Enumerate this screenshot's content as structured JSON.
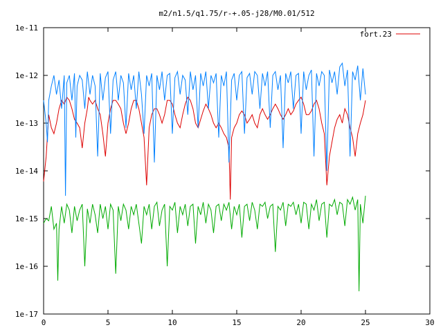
{
  "chart_data": {
    "type": "line",
    "title": "m2/n1.5/q1.75/r-+.05-j28/M0.01/512",
    "xlabel": "",
    "ylabel": "",
    "xlim": [
      0,
      30
    ],
    "ylim": [
      1e-17,
      1e-11
    ],
    "yscale": "log",
    "x_ticks": [
      0,
      5,
      10,
      15,
      20,
      25,
      30
    ],
    "x_tick_labels": [
      "0",
      "5",
      "10",
      "15",
      "20",
      "25",
      "30"
    ],
    "y_ticks": [
      1e-17,
      1e-16,
      1e-15,
      1e-14,
      1e-13,
      1e-12,
      1e-11
    ],
    "y_tick_labels": [
      "1e-17",
      "1e-16",
      "1e-15",
      "1e-14",
      "1e-13",
      "1e-12",
      "1e-11"
    ],
    "grid": false,
    "legend_position": "top-right",
    "legend": [
      "fort.23"
    ],
    "series": [
      {
        "name": "fort.23",
        "color": "#dd0000",
        "x": [
          0.0,
          0.2,
          0.4,
          0.6,
          0.8,
          1.0,
          1.2,
          1.4,
          1.6,
          1.8,
          2.0,
          2.2,
          2.4,
          2.6,
          2.8,
          3.0,
          3.2,
          3.4,
          3.5,
          3.6,
          3.8,
          4.0,
          4.2,
          4.4,
          4.6,
          4.8,
          5.0,
          5.2,
          5.4,
          5.6,
          5.8,
          6.0,
          6.2,
          6.4,
          6.6,
          6.8,
          7.0,
          7.2,
          7.4,
          7.6,
          7.8,
          8.0,
          8.2,
          8.4,
          8.6,
          8.8,
          9.0,
          9.2,
          9.4,
          9.6,
          9.8,
          10.0,
          10.2,
          10.4,
          10.6,
          10.8,
          11.0,
          11.2,
          11.4,
          11.6,
          11.8,
          12.0,
          12.2,
          12.4,
          12.6,
          12.8,
          13.0,
          13.2,
          13.4,
          13.6,
          13.8,
          14.0,
          14.2,
          14.4,
          14.5,
          14.6,
          14.8,
          15.0,
          15.2,
          15.4,
          15.6,
          15.8,
          16.0,
          16.2,
          16.4,
          16.6,
          16.8,
          17.0,
          17.2,
          17.4,
          17.6,
          17.8,
          18.0,
          18.2,
          18.4,
          18.6,
          18.8,
          19.0,
          19.2,
          19.4,
          19.6,
          19.8,
          20.0,
          20.2,
          20.4,
          20.6,
          20.8,
          21.0,
          21.2,
          21.4,
          21.6,
          21.8,
          22.0,
          22.2,
          22.4,
          22.6,
          22.8,
          23.0,
          23.2,
          23.4,
          23.6,
          23.8,
          24.0,
          24.2,
          24.4,
          24.6,
          24.8,
          25.0
        ],
        "y": [
          6e-15,
          2e-14,
          1.5e-13,
          8e-14,
          6e-14,
          1e-13,
          2e-13,
          3e-13,
          2.5e-13,
          3.5e-13,
          3e-13,
          2e-13,
          1.2e-13,
          1e-13,
          8e-14,
          3e-14,
          1e-13,
          2e-13,
          3.5e-13,
          3e-13,
          2.5e-13,
          3e-13,
          2e-13,
          1.5e-13,
          6e-14,
          2e-14,
          1e-13,
          2e-13,
          3e-13,
          3e-13,
          2.5e-13,
          2e-13,
          1e-13,
          6e-14,
          1e-13,
          2e-13,
          3e-13,
          3e-13,
          2e-13,
          1e-13,
          5e-14,
          5e-15,
          8e-14,
          1.5e-13,
          2e-13,
          2e-13,
          1.5e-13,
          1e-13,
          1.5e-13,
          3e-13,
          3e-13,
          2.5e-13,
          1.5e-13,
          1e-13,
          8e-14,
          1.5e-13,
          2.5e-13,
          3.5e-13,
          3e-13,
          2e-13,
          1e-13,
          8e-14,
          1.2e-13,
          1.8e-13,
          2.5e-13,
          2e-13,
          1.5e-13,
          1e-13,
          8e-14,
          1e-13,
          8e-14,
          6e-14,
          5e-14,
          3e-14,
          2.5e-15,
          5e-14,
          8e-14,
          1e-13,
          1.5e-13,
          1.8e-13,
          1.5e-13,
          1e-13,
          1.2e-13,
          1.5e-13,
          1e-13,
          8e-14,
          1.5e-13,
          2e-13,
          1.5e-13,
          1.2e-13,
          1.5e-13,
          2e-13,
          2.5e-13,
          2e-13,
          1.5e-13,
          1.2e-13,
          1.5e-13,
          2e-13,
          1.5e-13,
          1.8e-13,
          2.5e-13,
          3e-13,
          3.5e-13,
          2.5e-13,
          1.5e-13,
          1.5e-13,
          1.8e-13,
          2.5e-13,
          3e-13,
          2e-13,
          1e-13,
          6e-14,
          5e-15,
          2e-14,
          4e-14,
          8e-14,
          1.2e-13,
          1.5e-13,
          1e-13,
          2e-13,
          1.5e-13,
          8e-14,
          5e-14,
          2e-14,
          6e-14,
          1e-13,
          1.5e-13,
          3e-13
        ]
      },
      {
        "name": "",
        "color": "#0080ff",
        "x": [
          0.0,
          0.2,
          0.3,
          0.4,
          0.6,
          0.8,
          1.0,
          1.2,
          1.4,
          1.6,
          1.7,
          1.8,
          2.0,
          2.2,
          2.4,
          2.5,
          2.6,
          2.8,
          3.0,
          3.2,
          3.4,
          3.6,
          3.8,
          4.0,
          4.2,
          4.4,
          4.6,
          4.8,
          5.0,
          5.2,
          5.4,
          5.6,
          5.8,
          6.0,
          6.2,
          6.4,
          6.6,
          6.8,
          7.0,
          7.2,
          7.4,
          7.6,
          7.8,
          8.0,
          8.2,
          8.4,
          8.6,
          8.8,
          9.0,
          9.2,
          9.4,
          9.6,
          9.8,
          10.0,
          10.2,
          10.4,
          10.6,
          10.8,
          11.0,
          11.2,
          11.4,
          11.6,
          11.8,
          12.0,
          12.2,
          12.4,
          12.6,
          12.8,
          13.0,
          13.2,
          13.4,
          13.6,
          13.8,
          14.0,
          14.2,
          14.4,
          14.6,
          14.8,
          15.0,
          15.2,
          15.4,
          15.6,
          15.8,
          16.0,
          16.2,
          16.4,
          16.6,
          16.8,
          17.0,
          17.2,
          17.4,
          17.6,
          17.8,
          18.0,
          18.2,
          18.4,
          18.6,
          18.8,
          19.0,
          19.2,
          19.4,
          19.6,
          19.8,
          20.0,
          20.2,
          20.4,
          20.6,
          20.8,
          21.0,
          21.2,
          21.4,
          21.6,
          21.8,
          22.0,
          22.2,
          22.4,
          22.6,
          22.8,
          23.0,
          23.2,
          23.4,
          23.6,
          23.8,
          24.0,
          24.2,
          24.4,
          24.6,
          24.8,
          25.0
        ],
        "y": [
          3e-13,
          1e-13,
          4e-14,
          3e-13,
          6e-13,
          1e-12,
          4e-13,
          8e-13,
          2e-13,
          1e-12,
          3e-15,
          7e-13,
          1e-12,
          3e-13,
          1.1e-12,
          5e-14,
          6e-13,
          1e-12,
          8e-13,
          2e-13,
          1.2e-12,
          4e-13,
          1e-12,
          6e-13,
          2e-14,
          1.1e-12,
          3e-13,
          9e-13,
          1.2e-12,
          6e-14,
          8e-13,
          1.2e-12,
          3e-13,
          1e-12,
          7e-13,
          8e-14,
          1.1e-12,
          5e-13,
          1e-12,
          2e-13,
          1.2e-12,
          4e-13,
          6e-14,
          1e-12,
          6e-13,
          1.1e-12,
          1.5e-14,
          1e-12,
          5e-13,
          1.2e-12,
          3e-13,
          1e-12,
          1.1e-12,
          6e-14,
          9e-13,
          1.2e-12,
          4e-13,
          1e-12,
          8e-13,
          1.5e-13,
          1.2e-12,
          5e-13,
          1e-12,
          8e-14,
          1.1e-12,
          6e-13,
          1.2e-12,
          2e-13,
          1e-12,
          7e-13,
          1.1e-12,
          5e-14,
          1e-12,
          6e-13,
          1.2e-12,
          1.5e-14,
          8e-13,
          1.1e-12,
          3e-13,
          1e-12,
          1.2e-12,
          6e-14,
          9e-13,
          1.1e-12,
          4e-13,
          1.2e-12,
          1e-12,
          2e-13,
          1.1e-12,
          6e-13,
          1.2e-12,
          8e-14,
          1e-12,
          1.2e-12,
          5e-13,
          1e-12,
          3e-14,
          1.1e-12,
          7e-13,
          1.2e-12,
          2e-13,
          1e-12,
          1.1e-12,
          6e-14,
          1.2e-12,
          5e-13,
          1e-12,
          1.3e-12,
          2e-14,
          1.1e-12,
          6e-13,
          1.2e-12,
          1e-12,
          1e-14,
          1.3e-12,
          7e-13,
          1.2e-12,
          4e-13,
          1.5e-12,
          1.8e-12,
          6e-13,
          1.3e-12,
          2e-14,
          1.2e-12,
          8e-13,
          1.6e-12,
          3e-13,
          1.4e-12,
          4e-13
        ]
      },
      {
        "name": "",
        "color": "#00aa00",
        "x": [
          0.0,
          0.2,
          0.4,
          0.6,
          0.8,
          1.0,
          1.1,
          1.2,
          1.4,
          1.6,
          1.8,
          2.0,
          2.2,
          2.4,
          2.6,
          2.8,
          3.0,
          3.2,
          3.4,
          3.6,
          3.8,
          4.0,
          4.2,
          4.4,
          4.6,
          4.8,
          5.0,
          5.2,
          5.4,
          5.6,
          5.8,
          6.0,
          6.2,
          6.4,
          6.6,
          6.8,
          7.0,
          7.2,
          7.4,
          7.6,
          7.8,
          8.0,
          8.2,
          8.4,
          8.6,
          8.8,
          9.0,
          9.2,
          9.4,
          9.6,
          9.8,
          10.0,
          10.2,
          10.4,
          10.6,
          10.8,
          11.0,
          11.2,
          11.4,
          11.6,
          11.8,
          12.0,
          12.2,
          12.4,
          12.6,
          12.8,
          13.0,
          13.2,
          13.4,
          13.6,
          13.8,
          14.0,
          14.2,
          14.4,
          14.6,
          14.8,
          15.0,
          15.2,
          15.4,
          15.6,
          15.8,
          16.0,
          16.2,
          16.4,
          16.6,
          16.8,
          17.0,
          17.2,
          17.4,
          17.6,
          17.8,
          18.0,
          18.2,
          18.4,
          18.6,
          18.8,
          19.0,
          19.2,
          19.4,
          19.6,
          19.8,
          20.0,
          20.2,
          20.4,
          20.6,
          20.8,
          21.0,
          21.2,
          21.4,
          21.6,
          21.8,
          22.0,
          22.2,
          22.4,
          22.6,
          22.8,
          23.0,
          23.2,
          23.4,
          23.6,
          23.8,
          24.0,
          24.2,
          24.4,
          24.5,
          24.6,
          24.8,
          25.0
        ],
        "y": [
          8e-16,
          1e-15,
          9e-16,
          1.8e-15,
          6e-16,
          8e-16,
          5e-17,
          6e-16,
          1.8e-15,
          8e-16,
          2e-15,
          1.5e-15,
          5e-16,
          1.8e-15,
          9e-16,
          1.5e-15,
          2e-15,
          1e-16,
          1.6e-15,
          8e-16,
          2e-15,
          1.2e-15,
          5e-16,
          2e-15,
          1e-15,
          1.8e-15,
          6e-16,
          2e-15,
          1.5e-15,
          7e-17,
          1.8e-15,
          9e-16,
          2e-15,
          1.5e-15,
          6e-16,
          1.8e-15,
          1.2e-15,
          2e-15,
          8e-16,
          3e-16,
          1.8e-15,
          1.2e-15,
          2e-15,
          6e-16,
          1.8e-15,
          2.2e-15,
          7e-16,
          1.5e-15,
          2e-15,
          1e-16,
          1.8e-15,
          1.5e-15,
          2.2e-15,
          5e-16,
          1.8e-15,
          1.2e-15,
          2e-15,
          7e-16,
          1.8e-15,
          2e-15,
          3e-16,
          1.8e-15,
          1.2e-15,
          2.2e-15,
          8e-16,
          2e-15,
          1.5e-15,
          5e-16,
          1.8e-15,
          2e-15,
          9e-16,
          2e-15,
          1.5e-15,
          2.2e-15,
          6e-16,
          1.8e-15,
          1.2e-15,
          2e-15,
          4e-16,
          1.8e-15,
          2e-15,
          9e-16,
          2.2e-15,
          1.5e-15,
          6e-16,
          2e-15,
          1.8e-15,
          2.2e-15,
          1e-15,
          1.8e-15,
          2e-15,
          2e-16,
          1.8e-15,
          1.5e-15,
          2.2e-15,
          7e-16,
          2e-15,
          1.8e-15,
          2.2e-15,
          1.2e-15,
          2e-15,
          8e-16,
          2.2e-15,
          2e-15,
          6e-16,
          2e-15,
          1.5e-15,
          2.5e-15,
          9e-16,
          2e-15,
          2.2e-15,
          4e-16,
          2e-15,
          1.8e-15,
          2.5e-15,
          1.2e-15,
          2.2e-15,
          2e-15,
          7e-16,
          2.5e-15,
          2e-15,
          2.8e-15,
          1.5e-15,
          2.5e-15,
          3e-17,
          2e-15,
          8e-16,
          3e-15
        ]
      }
    ]
  }
}
